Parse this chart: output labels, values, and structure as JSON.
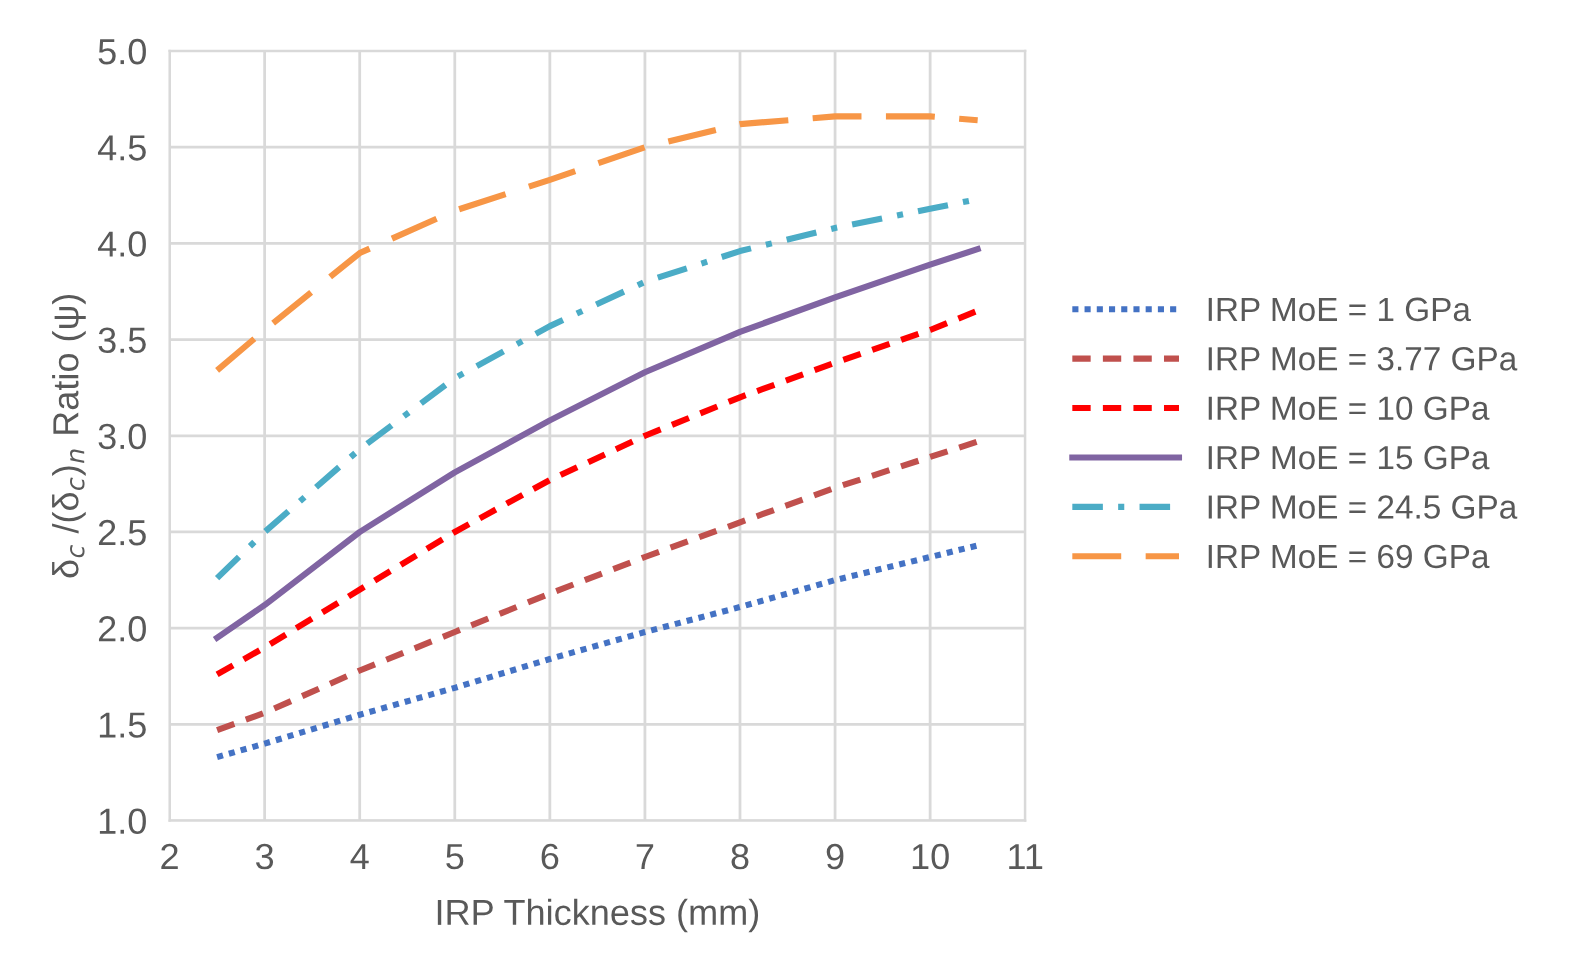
{
  "chart_data": {
    "type": "line",
    "xlabel": "IRP Thickness (mm)",
    "ylabel": "δ$_{c}$ /(δ$_{c}$)$_{n}$ Ratio (ψ)",
    "x": [
      2.5,
      3,
      4,
      5,
      6,
      7,
      8,
      9,
      10,
      10.5
    ],
    "series": [
      {
        "name": "IRP MoE = 1 GPa",
        "color": "#4472c4",
        "line_style": "dotted",
        "values": [
          1.33,
          1.4,
          1.55,
          1.69,
          1.84,
          1.98,
          2.11,
          2.25,
          2.37,
          2.43
        ]
      },
      {
        "name": "IRP MoE = 3.77 GPa",
        "color": "#c0504d",
        "line_style": "dashed",
        "values": [
          1.47,
          1.56,
          1.78,
          1.98,
          2.18,
          2.37,
          2.55,
          2.73,
          2.89,
          2.97
        ]
      },
      {
        "name": "IRP MoE = 10 GPa",
        "color": "#ff0000",
        "line_style": "dashed",
        "values": [
          1.76,
          1.9,
          2.2,
          2.5,
          2.77,
          3.0,
          3.2,
          3.38,
          3.55,
          3.65
        ]
      },
      {
        "name": "IRP MoE = 15 GPa",
        "color": "#8064a2",
        "line_style": "solid",
        "values": [
          1.95,
          2.12,
          2.5,
          2.81,
          3.08,
          3.33,
          3.54,
          3.72,
          3.89,
          3.97
        ]
      },
      {
        "name": "IRP MoE = 24.5 GPa",
        "color": "#4bacc6",
        "line_style": "dashdot",
        "values": [
          2.26,
          2.5,
          2.93,
          3.3,
          3.57,
          3.8,
          3.96,
          4.08,
          4.18,
          4.23
        ]
      },
      {
        "name": "IRP MoE = 69 GPa",
        "color": "#f79646",
        "line_style": "longdash",
        "values": [
          3.34,
          3.55,
          3.95,
          4.17,
          4.33,
          4.5,
          4.62,
          4.66,
          4.66,
          4.64
        ]
      }
    ],
    "xlim": [
      2,
      11
    ],
    "xticks": [
      2,
      3,
      4,
      5,
      6,
      7,
      8,
      9,
      10,
      11
    ],
    "ylim": [
      1.0,
      5.0
    ],
    "yticks": [
      {
        "value": 1.0,
        "label": "1.0"
      },
      {
        "value": 1.5,
        "label": "1.5"
      },
      {
        "value": 2.0,
        "label": "2.0"
      },
      {
        "value": 2.5,
        "label": "2.5"
      },
      {
        "value": 3.0,
        "label": "3.0"
      },
      {
        "value": 3.5,
        "label": "3.5"
      },
      {
        "value": 4.0,
        "label": "4.0"
      },
      {
        "value": 4.5,
        "label": "4.5"
      },
      {
        "value": 5.0,
        "label": "5.0"
      }
    ],
    "grid": true,
    "legend": "right"
  }
}
